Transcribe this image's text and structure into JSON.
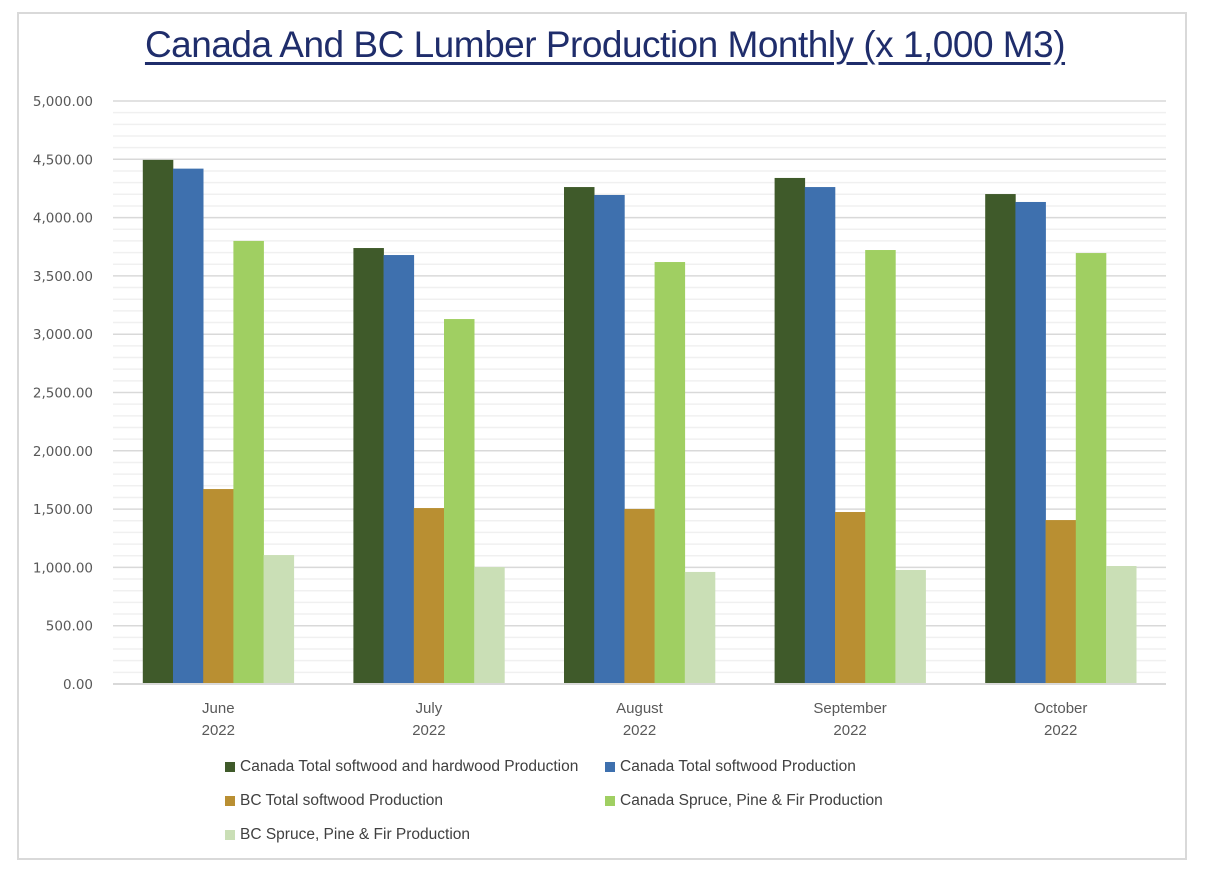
{
  "chart_data": {
    "type": "bar",
    "title": "Canada And BC Lumber Production Monthly (x 1,000 M3)",
    "xlabel": "",
    "ylabel": "",
    "ylim": [
      0,
      5000
    ],
    "yticks": [
      0,
      500,
      1000,
      1500,
      2000,
      2500,
      3000,
      3500,
      4000,
      4500,
      5000
    ],
    "ytick_labels": [
      "0.00",
      "500.00",
      "1,000.00",
      "1,500.00",
      "2,000.00",
      "2,500.00",
      "3,000.00",
      "3,500.00",
      "4,000.00",
      "4,500.00",
      "5,000.00"
    ],
    "minor_grid_step": 100,
    "grid": true,
    "legend_position": "bottom",
    "categories": [
      {
        "month": "June",
        "year": "2022"
      },
      {
        "month": "July",
        "year": "2022"
      },
      {
        "month": "August",
        "year": "2022"
      },
      {
        "month": "September",
        "year": "2022"
      },
      {
        "month": "October",
        "year": "2022"
      }
    ],
    "series": [
      {
        "name": "Canada Total softwood and hardwood Production",
        "color": "#3f5a2a",
        "values": [
          4495,
          3739,
          4262,
          4340,
          4202
        ]
      },
      {
        "name": "Canada Total softwood Production",
        "color": "#3e70ae",
        "values": [
          4420,
          3679,
          4194,
          4262,
          4134
        ]
      },
      {
        "name": "BC Total softwood Production",
        "color": "#b98f32",
        "values": [
          1672,
          1509,
          1501,
          1475,
          1406
        ]
      },
      {
        "name": "Canada Spruce, Pine & Fir Production",
        "color": "#a0cf62",
        "values": [
          3800,
          3130,
          3619,
          3722,
          3696
        ]
      },
      {
        "name": "BC Spruce, Pine & Fir Production",
        "color": "#cadfb6",
        "values": [
          1106,
          1003,
          961,
          978,
          1012
        ]
      }
    ]
  }
}
